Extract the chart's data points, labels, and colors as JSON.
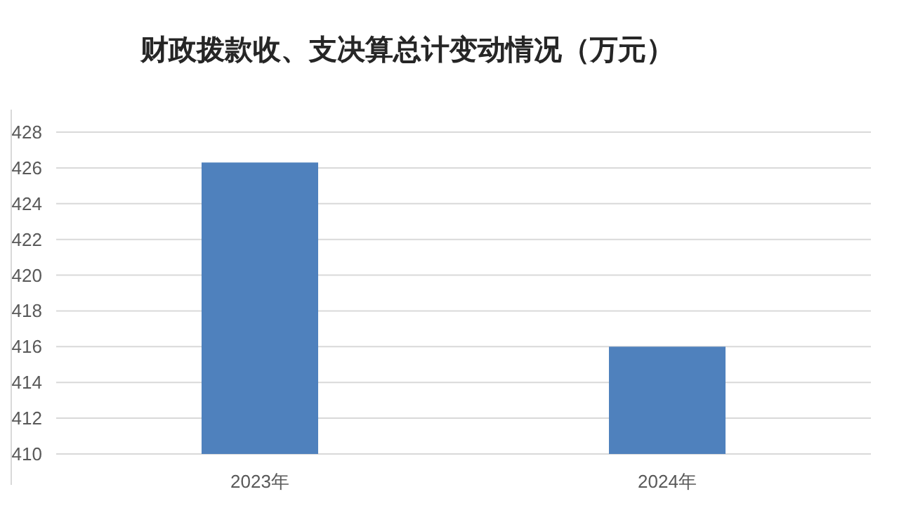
{
  "chart_data": {
    "type": "bar",
    "title": "财政拨款收、支决算总计变动情况（万元）",
    "categories": [
      "2023年",
      "2024年"
    ],
    "series": [
      {
        "color": "#4f81bd",
        "values": [
          426.3,
          416.0
        ]
      }
    ],
    "ylim": [
      410,
      428
    ],
    "yticks": [
      410,
      412,
      414,
      416,
      418,
      420,
      422,
      424,
      426,
      428
    ],
    "grid": "y"
  }
}
